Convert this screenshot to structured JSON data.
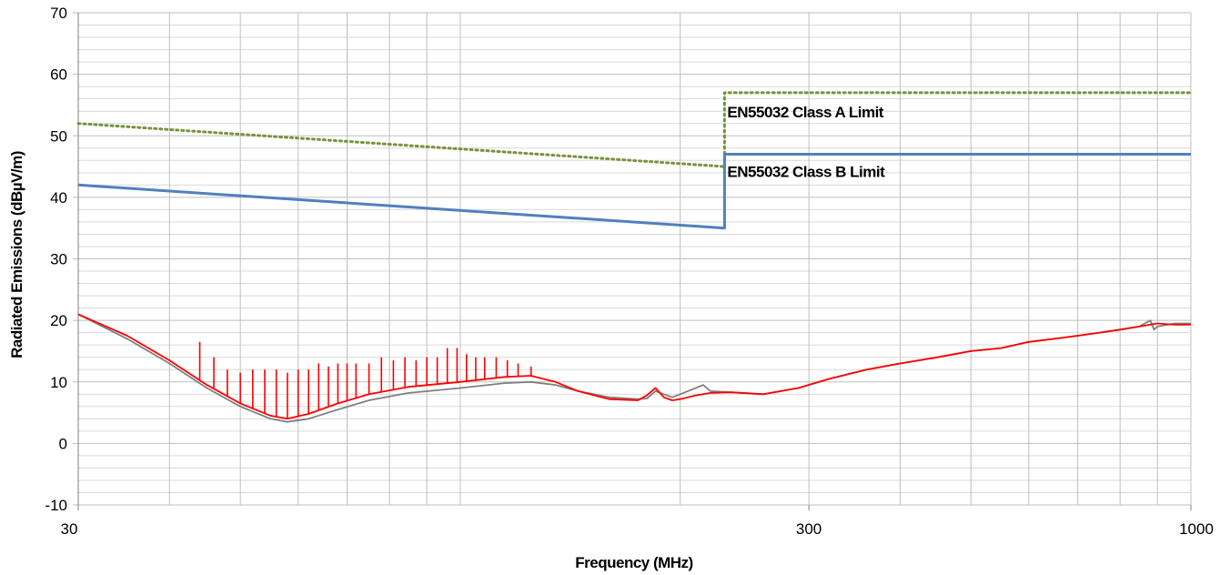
{
  "chart_data": {
    "type": "line",
    "xlabel": "Frequency (MHz)",
    "ylabel": "Radiated Emissions (dBµV/m)",
    "x_scale": "log",
    "xlim": [
      30,
      1000
    ],
    "ylim": [
      -10,
      70
    ],
    "x_ticks": [
      30,
      300,
      1000
    ],
    "y_ticks": [
      -10,
      0,
      10,
      20,
      30,
      40,
      50,
      60,
      70
    ],
    "grid": true,
    "colors": {
      "class_a": "#77933C",
      "class_b": "#4F81BD",
      "emissions_red": "#FF0000",
      "emissions_gray": "#7F7F7F",
      "grid": "#BFBFBF",
      "minor_grid": "#D9D9D9"
    },
    "annotations": [
      {
        "text": "EN55032 Class A Limit",
        "x": 232,
        "y": 53
      },
      {
        "text": "EN55032 Class B Limit",
        "x": 232,
        "y": 43.3
      }
    ],
    "series": [
      {
        "key": "class_a",
        "style": "dotted",
        "points": [
          [
            30,
            52
          ],
          [
            230,
            45
          ],
          [
            230,
            57
          ],
          [
            1000,
            57
          ]
        ]
      },
      {
        "key": "class_b",
        "style": "solid",
        "points": [
          [
            30,
            42
          ],
          [
            230,
            35
          ],
          [
            230,
            47
          ],
          [
            1000,
            47
          ]
        ]
      },
      {
        "key": "emissions_gray",
        "style": "solid",
        "points": [
          [
            30,
            21
          ],
          [
            35,
            17
          ],
          [
            40,
            13
          ],
          [
            45,
            9
          ],
          [
            50,
            6
          ],
          [
            55,
            4
          ],
          [
            58,
            3.5
          ],
          [
            62,
            4
          ],
          [
            68,
            5.5
          ],
          [
            75,
            7
          ],
          [
            85,
            8.2
          ],
          [
            100,
            9
          ],
          [
            115,
            9.8
          ],
          [
            125,
            10
          ],
          [
            135,
            9.5
          ],
          [
            145,
            8.5
          ],
          [
            160,
            7.5
          ],
          [
            175,
            7.2
          ],
          [
            180,
            7.3
          ],
          [
            185,
            8.5
          ],
          [
            190,
            8
          ],
          [
            195,
            7.5
          ],
          [
            200,
            8
          ],
          [
            210,
            9
          ],
          [
            215,
            9.5
          ],
          [
            220,
            8.5
          ],
          [
            235,
            8.3
          ],
          [
            260,
            8
          ],
          [
            290,
            9
          ],
          [
            320,
            10.5
          ],
          [
            360,
            12
          ],
          [
            400,
            13
          ],
          [
            450,
            14
          ],
          [
            500,
            15
          ],
          [
            550,
            15.5
          ],
          [
            600,
            16.5
          ],
          [
            650,
            17
          ],
          [
            700,
            17.5
          ],
          [
            750,
            18
          ],
          [
            800,
            18.5
          ],
          [
            850,
            19
          ],
          [
            880,
            20
          ],
          [
            890,
            18.5
          ],
          [
            900,
            19
          ],
          [
            950,
            19.5
          ],
          [
            1000,
            19.5
          ]
        ]
      },
      {
        "key": "emissions_red",
        "style": "solid",
        "points": [
          [
            30,
            21
          ],
          [
            35,
            17.5
          ],
          [
            40,
            13.5
          ],
          [
            45,
            9.5
          ],
          [
            50,
            6.5
          ],
          [
            55,
            4.5
          ],
          [
            58,
            4
          ],
          [
            62,
            4.8
          ],
          [
            68,
            6.5
          ],
          [
            75,
            8
          ],
          [
            85,
            9.2
          ],
          [
            100,
            10
          ],
          [
            115,
            10.8
          ],
          [
            125,
            11
          ],
          [
            135,
            10
          ],
          [
            145,
            8.5
          ],
          [
            160,
            7.2
          ],
          [
            175,
            7
          ],
          [
            180,
            7.8
          ],
          [
            185,
            9
          ],
          [
            190,
            7.5
          ],
          [
            195,
            7
          ],
          [
            200,
            7.2
          ],
          [
            210,
            7.8
          ],
          [
            220,
            8.2
          ],
          [
            235,
            8.3
          ],
          [
            260,
            8
          ],
          [
            290,
            9
          ],
          [
            320,
            10.5
          ],
          [
            360,
            12
          ],
          [
            400,
            13
          ],
          [
            450,
            14
          ],
          [
            500,
            15
          ],
          [
            550,
            15.5
          ],
          [
            600,
            16.5
          ],
          [
            650,
            17
          ],
          [
            700,
            17.5
          ],
          [
            750,
            18
          ],
          [
            800,
            18.5
          ],
          [
            850,
            19
          ],
          [
            900,
            19.5
          ],
          [
            950,
            19.3
          ],
          [
            1000,
            19.3
          ]
        ],
        "spikes": [
          [
            44,
            16.5
          ],
          [
            46,
            14
          ],
          [
            48,
            12
          ],
          [
            50,
            11.5
          ],
          [
            52,
            12
          ],
          [
            54,
            12
          ],
          [
            56,
            12
          ],
          [
            58,
            11.5
          ],
          [
            60,
            12
          ],
          [
            62,
            12
          ],
          [
            64,
            13
          ],
          [
            66,
            12.5
          ],
          [
            68,
            13
          ],
          [
            70,
            13
          ],
          [
            72,
            13
          ],
          [
            75,
            13
          ],
          [
            78,
            14
          ],
          [
            81,
            13.5
          ],
          [
            84,
            14
          ],
          [
            87,
            13.5
          ],
          [
            90,
            14
          ],
          [
            93,
            14
          ],
          [
            96,
            15.5
          ],
          [
            99,
            15.5
          ],
          [
            102,
            14.5
          ],
          [
            105,
            14
          ],
          [
            108,
            14
          ],
          [
            112,
            14
          ],
          [
            116,
            13.5
          ],
          [
            120,
            13
          ],
          [
            125,
            12.5
          ]
        ]
      }
    ]
  }
}
